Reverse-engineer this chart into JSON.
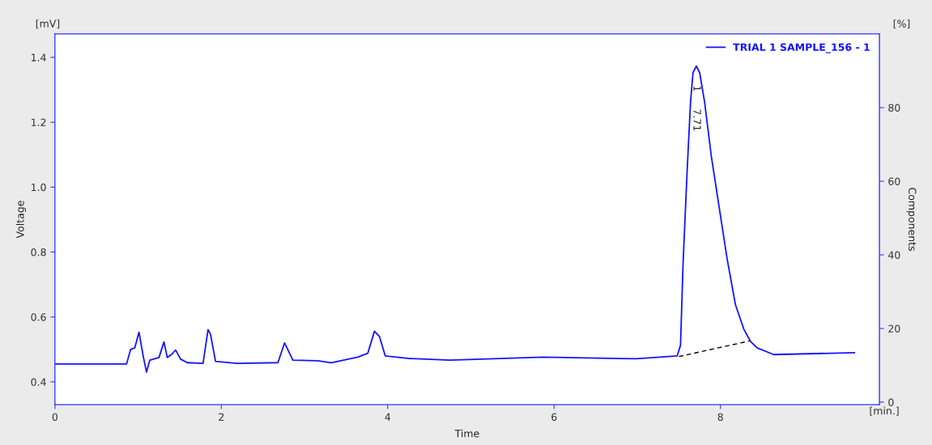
{
  "chart_data": {
    "type": "line",
    "xlabel": "Time",
    "ylabel": "Voltage",
    "y2label": "Components",
    "xlim": [
      0,
      9.91
    ],
    "xticks": [
      0,
      2,
      4,
      6,
      8
    ],
    "ylim": [
      0.33,
      1.472
    ],
    "yticks": [
      0.4,
      0.6,
      0.8,
      {
        "value": 1.0,
        "label": "1.0"
      },
      1.2,
      1.4
    ],
    "y2lim": [
      -0.66,
      100
    ],
    "y2ticks": [
      0,
      20,
      40,
      60,
      80
    ],
    "grid": false,
    "legend": "top right",
    "marker": "none",
    "line_style": "solid",
    "series": [
      {
        "name": "TRIAL 1 SAMPLE_156 - 1",
        "color": "#1414ff",
        "x": [
          0,
          0.86,
          0.91,
          0.96,
          1.01,
          1.06,
          1.1,
          1.14,
          1.25,
          1.31,
          1.35,
          1.4,
          1.45,
          1.51,
          1.59,
          1.78,
          1.84,
          1.87,
          1.93,
          2.19,
          2.68,
          2.76,
          2.86,
          3.16,
          3.32,
          3.64,
          3.76,
          3.84,
          3.9,
          3.97,
          4.26,
          4.75,
          5.87,
          6.99,
          7.48,
          7.52,
          7.55,
          7.6,
          7.64,
          7.67,
          7.71,
          7.75,
          7.81,
          7.89,
          7.99,
          8.08,
          8.18,
          8.28,
          8.36,
          8.44,
          8.64,
          9.61
        ],
        "values": [
          0.455,
          0.455,
          0.5,
          0.505,
          0.553,
          0.48,
          0.43,
          0.467,
          0.475,
          0.523,
          0.475,
          0.484,
          0.498,
          0.47,
          0.459,
          0.457,
          0.561,
          0.546,
          0.463,
          0.457,
          0.459,
          0.52,
          0.467,
          0.465,
          0.459,
          0.476,
          0.488,
          0.556,
          0.54,
          0.48,
          0.472,
          0.467,
          0.476,
          0.471,
          0.48,
          0.513,
          0.762,
          1.053,
          1.261,
          1.353,
          1.373,
          1.353,
          1.261,
          1.095,
          0.929,
          0.779,
          0.638,
          0.563,
          0.525,
          0.505,
          0.484,
          0.49
        ]
      },
      {
        "type": "line",
        "color": "#000000",
        "line_style": "dashed",
        "x": [
          7.5,
          8.35
        ],
        "values": [
          0.478,
          0.526
        ]
      }
    ],
    "annotations": [
      {
        "text": "1",
        "x": 7.71,
        "y": 1.373
      },
      "7.71",
      "[mV]",
      "[%]",
      "[min.]"
    ]
  }
}
